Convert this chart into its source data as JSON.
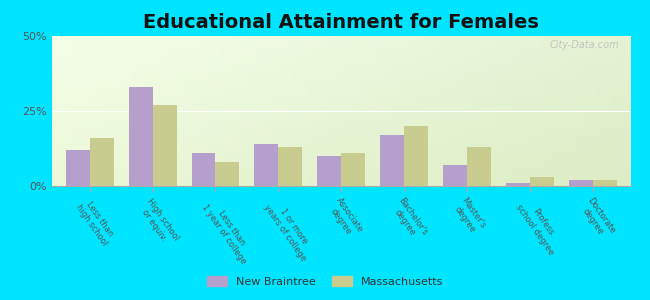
{
  "title": "Educational Attainment for Females",
  "categories": [
    "Less than\nhigh school",
    "High school\nor equiv.",
    "Less than\n1 year of college",
    "1 or more\nyears of college",
    "Associate\ndegree",
    "Bachelor's\ndegree",
    "Master's\ndegree",
    "Profess.\nschool degree",
    "Doctorate\ndegree"
  ],
  "new_braintree": [
    12,
    33,
    11,
    14,
    10,
    17,
    7,
    1,
    2
  ],
  "massachusetts": [
    16,
    27,
    8,
    13,
    11,
    20,
    13,
    3,
    2
  ],
  "bar_color_nb": "#b59fcc",
  "bar_color_ma": "#c8cc8f",
  "figure_bg": "#00e5ff",
  "ylim": [
    0,
    50
  ],
  "yticks": [
    0,
    25,
    50
  ],
  "ytick_labels": [
    "0%",
    "25%",
    "50%"
  ],
  "legend_nb": "New Braintree",
  "legend_ma": "Massachusetts",
  "title_fontsize": 14,
  "watermark": "City-Data.com"
}
